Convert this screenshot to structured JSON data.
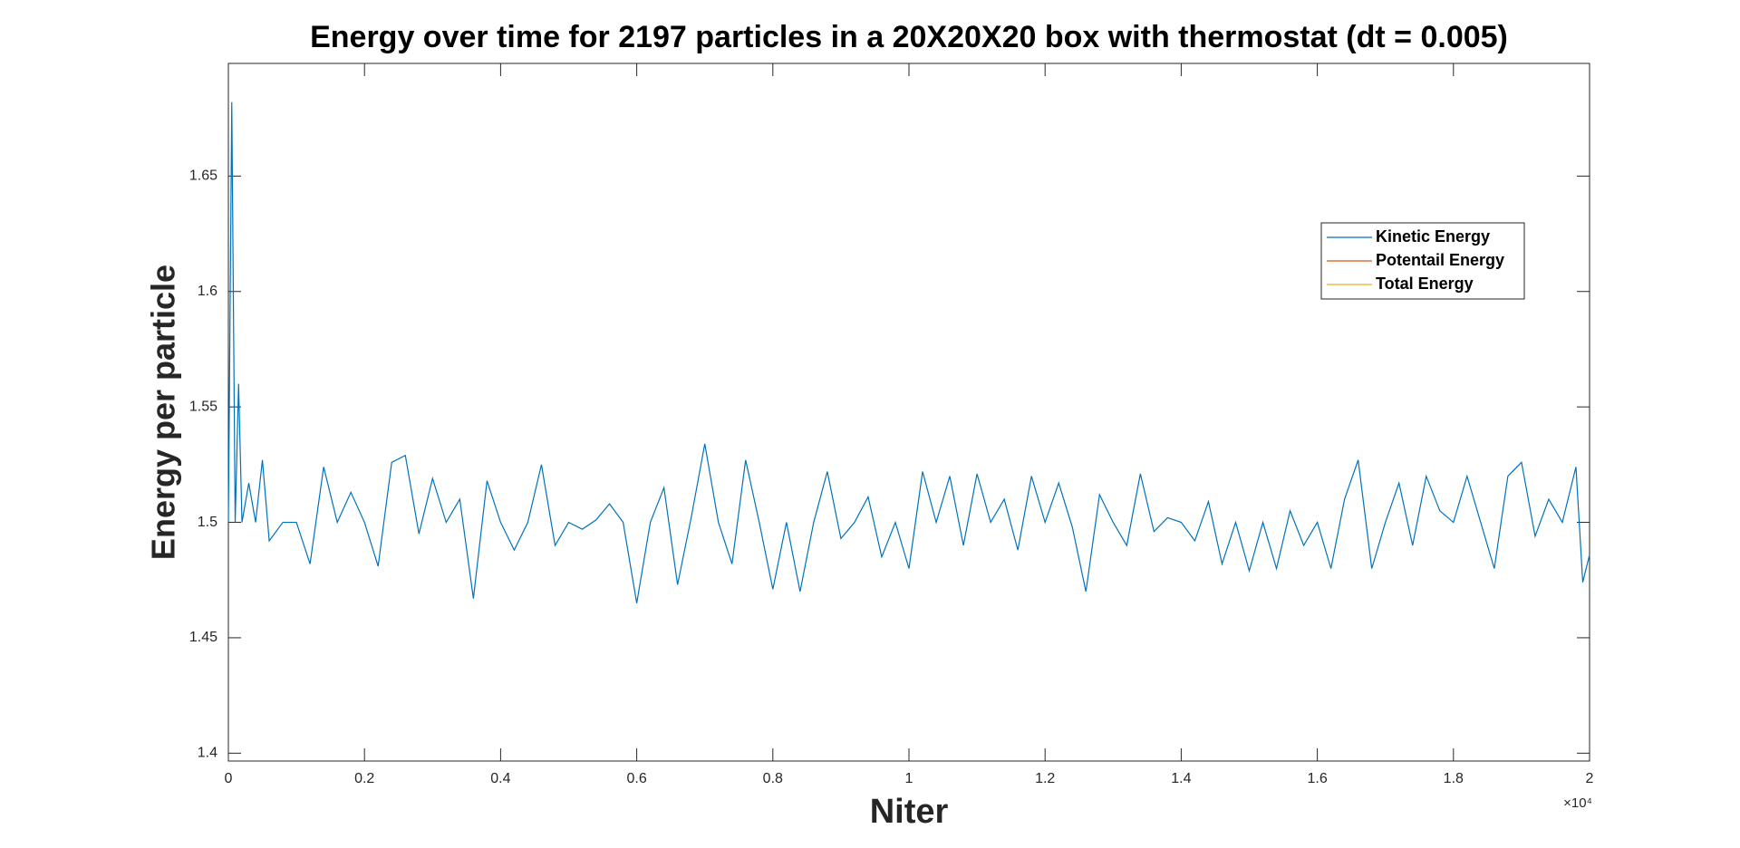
{
  "chart_data": {
    "type": "line",
    "title": "Energy over time for 2197 particles in a 20X20X20 box with thermostat (dt = 0.005)",
    "x_label": "Niter",
    "y_label": "Energy per particle",
    "x_multiplier": "×10⁴",
    "x": [
      0,
      0.005,
      0.01,
      0.015,
      0.02,
      0.03,
      0.04,
      0.05,
      0.06,
      0.08,
      0.1,
      0.12,
      0.14,
      0.16,
      0.18,
      0.2,
      0.22,
      0.24,
      0.26,
      0.28,
      0.3,
      0.32,
      0.34,
      0.36,
      0.38,
      0.4,
      0.42,
      0.44,
      0.46,
      0.48,
      0.5,
      0.52,
      0.54,
      0.56,
      0.58,
      0.6,
      0.62,
      0.64,
      0.66,
      0.68,
      0.7,
      0.72,
      0.74,
      0.76,
      0.78,
      0.8,
      0.82,
      0.84,
      0.86,
      0.88,
      0.9,
      0.92,
      0.94,
      0.96,
      0.98,
      1.0,
      1.02,
      1.04,
      1.06,
      1.08,
      1.1,
      1.12,
      1.14,
      1.16,
      1.18,
      1.2,
      1.22,
      1.24,
      1.26,
      1.28,
      1.3,
      1.32,
      1.34,
      1.36,
      1.38,
      1.4,
      1.42,
      1.44,
      1.46,
      1.48,
      1.5,
      1.52,
      1.54,
      1.56,
      1.58,
      1.6,
      1.62,
      1.64,
      1.66,
      1.68,
      1.7,
      1.72,
      1.74,
      1.76,
      1.78,
      1.8,
      1.82,
      1.84,
      1.86,
      1.88,
      1.9,
      1.92,
      1.94,
      1.96,
      1.98,
      1.99,
      2.0
    ],
    "series": [
      {
        "name": "Kinetic Energy",
        "color": "#0072bd",
        "values": [
          1.5,
          1.682,
          1.5,
          1.56,
          1.5,
          1.517,
          1.5,
          1.527,
          1.492,
          1.5,
          1.5,
          1.482,
          1.524,
          1.5,
          1.513,
          1.5,
          1.481,
          1.526,
          1.529,
          1.495,
          1.519,
          1.5,
          1.51,
          1.467,
          1.518,
          1.5,
          1.488,
          1.5,
          1.525,
          1.49,
          1.5,
          1.497,
          1.501,
          1.508,
          1.5,
          1.465,
          1.5,
          1.515,
          1.473,
          1.502,
          1.534,
          1.5,
          1.482,
          1.527,
          1.5,
          1.471,
          1.5,
          1.47,
          1.5,
          1.522,
          1.493,
          1.5,
          1.511,
          1.485,
          1.5,
          1.48,
          1.522,
          1.5,
          1.52,
          1.49,
          1.521,
          1.5,
          1.51,
          1.488,
          1.52,
          1.5,
          1.517,
          1.498,
          1.47,
          1.512,
          1.5,
          1.49,
          1.521,
          1.496,
          1.502,
          1.5,
          1.492,
          1.509,
          1.482,
          1.5,
          1.479,
          1.5,
          1.48,
          1.505,
          1.49,
          1.5,
          1.48,
          1.51,
          1.527,
          1.48,
          1.5,
          1.517,
          1.49,
          1.52,
          1.505,
          1.5,
          1.52,
          1.5,
          1.48,
          1.52,
          1.526,
          1.494,
          1.51,
          1.5,
          1.524,
          1.474,
          1.486
        ]
      },
      {
        "name": "Potentail Energy",
        "color": "#d95319"
      },
      {
        "name": "Total Energy",
        "color": "#edb120"
      }
    ],
    "xlim": [
      0,
      2
    ],
    "xticks": [
      0,
      0.2,
      0.4,
      0.6,
      0.8,
      1,
      1.2,
      1.4,
      1.6,
      1.8,
      2
    ],
    "ylim": [
      1.3966,
      1.6988
    ],
    "yticks": [
      1.4,
      1.45,
      1.5,
      1.55,
      1.6,
      1.65
    ],
    "grid": false,
    "legend": "upper right"
  }
}
